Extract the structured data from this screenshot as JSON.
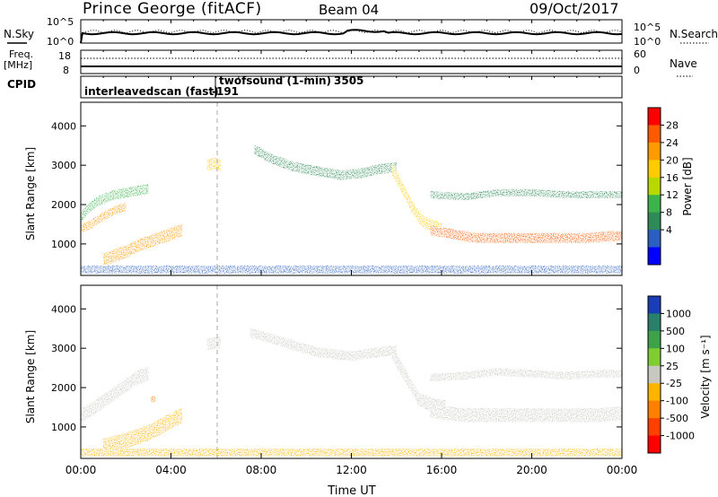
{
  "header": {
    "station": "Prince George (fitACF)",
    "beam": "Beam 04",
    "date": "09/Oct/2017"
  },
  "noise_panel": {
    "left_label": "N.Sky",
    "right_label": "N.Search",
    "left_ticks": [
      "10^5",
      "10^0"
    ],
    "right_ticks": [
      "10^5",
      "10^0"
    ]
  },
  "freq_panel": {
    "left_label_line1": "Freq.",
    "left_label_line2": "[MHz]",
    "right_label": "Nave",
    "left_ticks": [
      "18",
      "8"
    ],
    "right_ticks": [
      "60",
      "0"
    ]
  },
  "cpid_panel": {
    "label": "CPID",
    "mode1": "interleavedscan (fast)",
    "mode1_id": "-191",
    "mode2": "twofsound (1-min)",
    "mode2_id": "3505"
  },
  "x_axis": {
    "label": "Time UT",
    "tick_labels": [
      "00:00",
      "04:00",
      "08:00",
      "12:00",
      "16:00",
      "20:00",
      "00:00"
    ]
  },
  "power_colorbar": {
    "label": "Power [dB]",
    "ticks": [
      "28",
      "24",
      "20",
      "16",
      "12",
      "8",
      "4"
    ],
    "colors": [
      "#ff0000",
      "#ff5a00",
      "#ff9a00",
      "#ffcc00",
      "#b8d800",
      "#3cb44b",
      "#2e8b57",
      "#2a5fbf",
      "#0000ff"
    ]
  },
  "velocity_colorbar": {
    "label": "Velocity [m s⁻¹]",
    "ticks": [
      "1000",
      "500",
      "100",
      "25",
      "-25",
      "-100",
      "-500",
      "-1000"
    ],
    "colors": [
      "#1a3cb4",
      "#2a7f6a",
      "#3ea24a",
      "#7fcc33",
      "#c8c8c0",
      "#ffb400",
      "#ff8000",
      "#ff4000",
      "#ff0000"
    ]
  },
  "chart_data": [
    {
      "type": "heatmap",
      "title": "",
      "xlabel": "",
      "ylabel": "Slant Range [km]",
      "xlim": [
        0,
        24
      ],
      "ylim": [
        200,
        4600
      ],
      "yticks": [
        1000,
        2000,
        3000,
        4000
      ],
      "colorbar_label": "Power [dB]",
      "features": [
        {
          "name": "band-early-upper",
          "t": [
            0,
            0.3,
            0.8,
            1.5,
            2.5,
            3.0
          ],
          "range_km": [
            1650,
            1900,
            2100,
            2250,
            2350,
            2400
          ],
          "width_km": 250,
          "power_db": 12
        },
        {
          "name": "band-early-main",
          "t": [
            0,
            0.3,
            0.6,
            1.0,
            1.5,
            2.0
          ],
          "range_km": [
            1400,
            1450,
            1550,
            1700,
            1850,
            1950
          ],
          "width_km": 220,
          "power_db": 24
        },
        {
          "name": "band-04h",
          "t": [
            1.0,
            1.5,
            2.0,
            2.5,
            3.0,
            3.5,
            4.0,
            4.5
          ],
          "range_km": [
            600,
            700,
            800,
            950,
            1050,
            1150,
            1250,
            1350
          ],
          "width_km": 320,
          "power_db": 24
        },
        {
          "name": "patch-06h",
          "t": [
            5.6,
            5.8,
            6.0,
            6.2
          ],
          "range_km": [
            3000,
            3050,
            3050,
            3000
          ],
          "width_km": 300,
          "power_db": 20
        },
        {
          "name": "arc-08h-14h",
          "t": [
            7.7,
            8.5,
            9.5,
            10.5,
            11.5,
            12.5,
            13.2,
            14.0
          ],
          "range_km": [
            3400,
            3150,
            2950,
            2850,
            2750,
            2800,
            2900,
            2950
          ],
          "width_km": 250,
          "power_db": 8
        },
        {
          "name": "descent-14h-16h",
          "t": [
            13.8,
            14.2,
            14.6,
            15.0,
            15.4,
            16.0
          ],
          "range_km": [
            2900,
            2500,
            2050,
            1650,
            1500,
            1400
          ],
          "width_km": 300,
          "power_db": 20
        },
        {
          "name": "band-late-main",
          "t": [
            15.5,
            16.5,
            17.5,
            18.5,
            19.5,
            20.5,
            21.5,
            22.5,
            23.5,
            24.0
          ],
          "range_km": [
            1350,
            1250,
            1150,
            1150,
            1150,
            1150,
            1150,
            1150,
            1200,
            1200
          ],
          "width_km": 250,
          "power_db": 28
        },
        {
          "name": "band-late-upper",
          "t": [
            15.5,
            17.0,
            18.5,
            20.0,
            21.5,
            23.0,
            24.0
          ],
          "range_km": [
            2250,
            2200,
            2300,
            2300,
            2250,
            2250,
            2250
          ],
          "width_km": 180,
          "power_db": 8
        },
        {
          "name": "ground-clutter",
          "t": [
            0,
            24
          ],
          "range_km": [
            350,
            350
          ],
          "width_km": 200,
          "power_db": 4
        }
      ]
    },
    {
      "type": "heatmap",
      "title": "",
      "xlabel": "Time UT",
      "ylabel": "Slant Range [km]",
      "xlim": [
        0,
        24
      ],
      "ylim": [
        200,
        4600
      ],
      "yticks": [
        1000,
        2000,
        3000,
        4000
      ],
      "colorbar_label": "Velocity [m s⁻¹]",
      "features": [
        {
          "name": "band-early",
          "t": [
            0,
            0.5,
            1.0,
            1.5,
            2.0,
            2.5,
            3.0
          ],
          "range_km": [
            1300,
            1450,
            1650,
            1850,
            2050,
            2250,
            2350
          ],
          "width_km": 350,
          "velocity_ms": 0
        },
        {
          "name": "band-04h",
          "t": [
            1.0,
            2.0,
            3.0,
            3.5,
            4.0,
            4.5
          ],
          "range_km": [
            500,
            650,
            850,
            1000,
            1150,
            1300
          ],
          "width_km": 400,
          "velocity_ms": -100
        },
        {
          "name": "heart-04h",
          "t": [
            3.1,
            3.3
          ],
          "range_km": [
            1700,
            1700
          ],
          "width_km": 150,
          "velocity_ms": -500
        },
        {
          "name": "patch-06h",
          "t": [
            5.6,
            6.2
          ],
          "range_km": [
            3100,
            3150
          ],
          "width_km": 300,
          "velocity_ms": 0
        },
        {
          "name": "arc-08h-14h",
          "t": [
            7.5,
            9.0,
            10.5,
            12.0,
            13.2,
            14.0
          ],
          "range_km": [
            3400,
            3150,
            2900,
            2800,
            2900,
            2950
          ],
          "width_km": 250,
          "velocity_ms": 0
        },
        {
          "name": "descent-14h-16h",
          "t": [
            13.8,
            14.4,
            15.0,
            15.6,
            16.2
          ],
          "range_km": [
            2900,
            2300,
            1700,
            1550,
            1500
          ],
          "width_km": 350,
          "velocity_ms": 0
        },
        {
          "name": "band-late-main",
          "t": [
            15.5,
            17,
            18.5,
            20,
            21.5,
            23,
            24
          ],
          "range_km": [
            1400,
            1300,
            1300,
            1300,
            1300,
            1300,
            1350
          ],
          "width_km": 350,
          "velocity_ms": 0
        },
        {
          "name": "band-late-upper",
          "t": [
            15.5,
            17,
            18.5,
            20,
            21.5,
            23,
            24
          ],
          "range_km": [
            2250,
            2300,
            2400,
            2350,
            2300,
            2350,
            2350
          ],
          "width_km": 200,
          "velocity_ms": 0
        },
        {
          "name": "near-range-clutter",
          "t": [
            0,
            24
          ],
          "range_km": [
            350,
            350
          ],
          "width_km": 200,
          "velocity_ms": -100
        }
      ]
    }
  ]
}
